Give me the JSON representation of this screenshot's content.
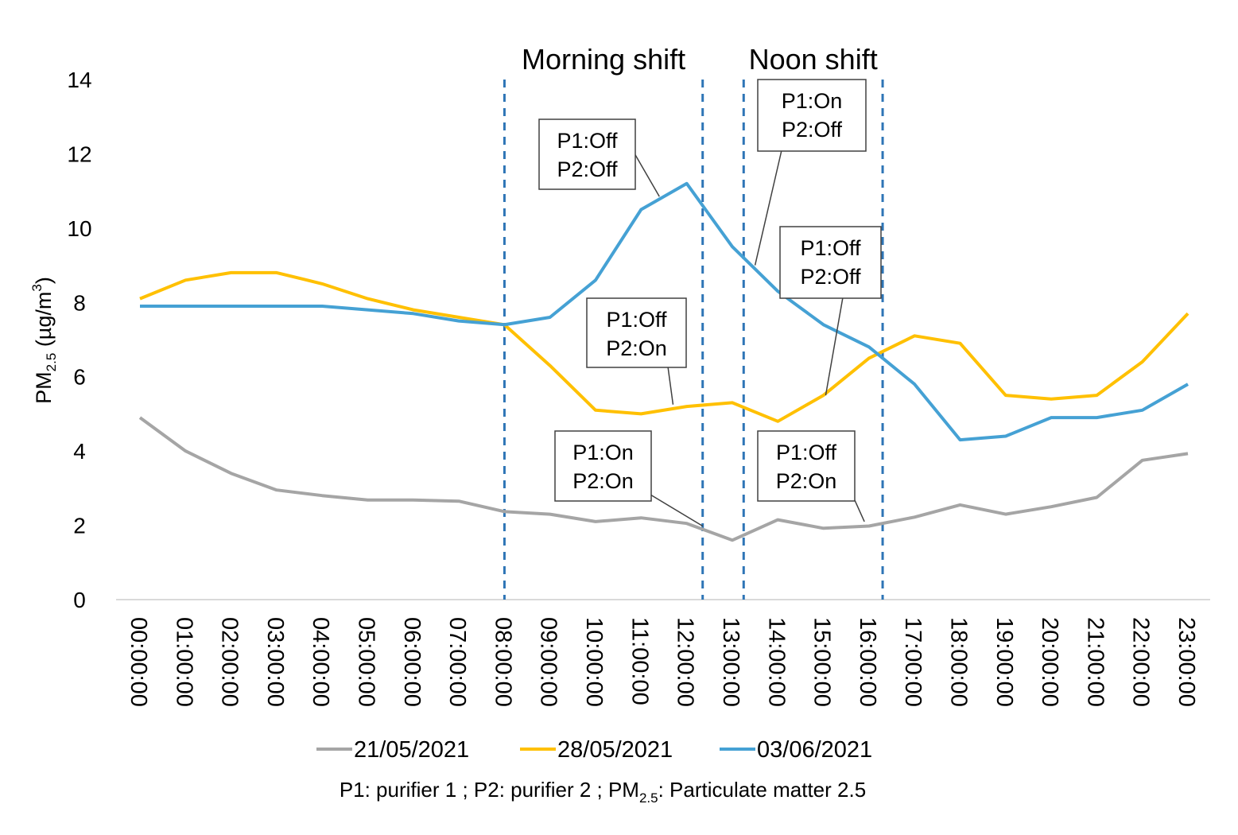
{
  "chart_data": {
    "type": "line",
    "ylabel": {
      "main": "PM",
      "sub": "2.5",
      "unit_open": " (µg/m",
      "sup": "3",
      "unit_close": ")"
    },
    "ylim": [
      0,
      14
    ],
    "yticks": [
      0,
      2,
      4,
      6,
      8,
      10,
      12,
      14
    ],
    "categories": [
      "00:00:00",
      "01:00:00",
      "02:00:00",
      "03:00:00",
      "04:00:00",
      "05:00:00",
      "06:00:00",
      "07:00:00",
      "08:00:00",
      "09:00:00",
      "10:00:00",
      "11:00:00",
      "12:00:00",
      "13:00:00",
      "14:00:00",
      "15:00:00",
      "16:00:00",
      "17:00:00",
      "18:00:00",
      "19:00:00",
      "20:00:00",
      "21:00:00",
      "22:00:00",
      "23:00:00"
    ],
    "series": [
      {
        "name": "21/05/2021",
        "color": "#a5a5a5",
        "values": [
          4.9,
          4.0,
          3.4,
          2.95,
          2.8,
          2.68,
          2.68,
          2.65,
          2.37,
          2.3,
          2.1,
          2.2,
          2.05,
          1.6,
          2.15,
          1.92,
          1.98,
          2.22,
          2.55,
          2.3,
          2.5,
          2.75,
          3.75,
          3.93
        ]
      },
      {
        "name": "28/05/2021",
        "color": "#ffc000",
        "values": [
          8.1,
          8.6,
          8.8,
          8.8,
          8.5,
          8.1,
          7.8,
          7.6,
          7.4,
          6.3,
          5.1,
          5.0,
          5.2,
          5.3,
          4.8,
          5.5,
          6.5,
          7.1,
          6.9,
          5.5,
          5.4,
          5.5,
          6.4,
          7.7
        ]
      },
      {
        "name": "03/06/2021",
        "color": "#45a1d4",
        "values": [
          7.9,
          7.9,
          7.9,
          7.9,
          7.9,
          7.8,
          7.7,
          7.5,
          7.4,
          7.6,
          8.6,
          10.5,
          11.2,
          9.5,
          8.3,
          7.4,
          6.8,
          5.8,
          4.3,
          4.4,
          4.9,
          4.9,
          5.1,
          5.8
        ]
      }
    ],
    "shifts": [
      {
        "label": "Morning shift",
        "start": 8.0,
        "end": 12.35
      },
      {
        "label": "Noon shift",
        "start": 13.25,
        "end": 16.3
      }
    ],
    "shift_line_color": "#2e75b6",
    "annotations": [
      {
        "id": "p1off-p2off-blue-morning",
        "line1": "P1:Off",
        "line2": "P2:Off",
        "x": 11.4,
        "y": 10.85
      },
      {
        "id": "p1on-p2off-blue-noon",
        "line1": "P1:On",
        "line2": "P2:Off",
        "x": 13.5,
        "y": 9.0
      },
      {
        "id": "p1off-p2off-yellow-noon",
        "line1": "P1:Off",
        "line2": "P2:Off",
        "x": 15.05,
        "y": 5.5
      },
      {
        "id": "p1off-p2on-yellow-morning",
        "line1": "P1:Off",
        "line2": "P2:On",
        "x": 11.7,
        "y": 5.25
      },
      {
        "id": "p1on-p2on-grey-morning",
        "line1": "P1:On",
        "line2": "P2:On",
        "x": 12.35,
        "y": 1.98
      },
      {
        "id": "p1off-p2on-grey-noon",
        "line1": "P1:Off",
        "line2": "P2:On",
        "x": 15.9,
        "y": 2.1
      }
    ],
    "legend_position": "bottom"
  },
  "footnote": {
    "part1": "P1: purifier 1 ; P2: purifier 2 ; PM",
    "sub": "2.5",
    "part2": ": Particulate matter 2.5"
  }
}
